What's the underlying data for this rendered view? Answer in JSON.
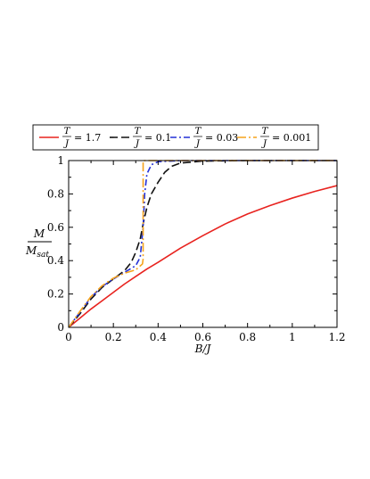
{
  "chart_data": {
    "type": "line",
    "xlabel": "B/J",
    "ylabel": {
      "numerator": "M",
      "denominator": "M_sat",
      "denominator_base": "M",
      "denominator_sub": "sat"
    },
    "xlim": [
      0,
      1.2
    ],
    "ylim": [
      0,
      1.0
    ],
    "x_ticks": [
      "0",
      "0.2",
      "0.4",
      "0.6",
      "0.8",
      "1",
      "1.2"
    ],
    "y_ticks": [
      "0",
      "0.2",
      "0.4",
      "0.6",
      "0.8",
      "1"
    ],
    "grid": false,
    "legend_placement": "top",
    "series": [
      {
        "name": "T/J = 1.7",
        "legend_value": "= 1.7",
        "color": "#e8231f",
        "dash": "solid",
        "points": [
          [
            0,
            0
          ],
          [
            0.05,
            0.055
          ],
          [
            0.1,
            0.11
          ],
          [
            0.15,
            0.16
          ],
          [
            0.2,
            0.21
          ],
          [
            0.25,
            0.26
          ],
          [
            0.3,
            0.305
          ],
          [
            0.35,
            0.35
          ],
          [
            0.4,
            0.39
          ],
          [
            0.5,
            0.475
          ],
          [
            0.6,
            0.55
          ],
          [
            0.7,
            0.62
          ],
          [
            0.8,
            0.68
          ],
          [
            0.9,
            0.73
          ],
          [
            1.0,
            0.775
          ],
          [
            1.1,
            0.815
          ],
          [
            1.2,
            0.85
          ]
        ]
      },
      {
        "name": "T/J = 0.1",
        "legend_value": "= 0.1",
        "color": "#111111",
        "dash": "long-dash",
        "points": [
          [
            0,
            0
          ],
          [
            0.05,
            0.08
          ],
          [
            0.1,
            0.17
          ],
          [
            0.15,
            0.24
          ],
          [
            0.2,
            0.29
          ],
          [
            0.25,
            0.34
          ],
          [
            0.28,
            0.39
          ],
          [
            0.3,
            0.45
          ],
          [
            0.32,
            0.53
          ],
          [
            0.333,
            0.62
          ],
          [
            0.35,
            0.72
          ],
          [
            0.37,
            0.8
          ],
          [
            0.4,
            0.87
          ],
          [
            0.43,
            0.93
          ],
          [
            0.46,
            0.965
          ],
          [
            0.5,
            0.985
          ],
          [
            0.6,
            0.997
          ],
          [
            0.8,
            1.0
          ],
          [
            1.2,
            1.0
          ]
        ]
      },
      {
        "name": "T/J = 0.03",
        "legend_value": "= 0.03",
        "color": "#2431d6",
        "dash": "dash-dot",
        "points": [
          [
            0,
            0
          ],
          [
            0.05,
            0.09
          ],
          [
            0.1,
            0.18
          ],
          [
            0.15,
            0.245
          ],
          [
            0.2,
            0.29
          ],
          [
            0.25,
            0.33
          ],
          [
            0.3,
            0.37
          ],
          [
            0.32,
            0.42
          ],
          [
            0.333,
            0.6
          ],
          [
            0.34,
            0.8
          ],
          [
            0.35,
            0.92
          ],
          [
            0.37,
            0.975
          ],
          [
            0.4,
            0.993
          ],
          [
            0.5,
            1.0
          ],
          [
            1.2,
            1.0
          ]
        ]
      },
      {
        "name": "T/J = 0.001",
        "legend_value": "= 0.001",
        "color": "#f5a31c",
        "dash": "dash-dot-long",
        "points": [
          [
            0,
            0
          ],
          [
            0.05,
            0.095
          ],
          [
            0.1,
            0.185
          ],
          [
            0.15,
            0.25
          ],
          [
            0.2,
            0.295
          ],
          [
            0.25,
            0.325
          ],
          [
            0.3,
            0.345
          ],
          [
            0.33,
            0.38
          ],
          [
            0.333,
            0.41
          ],
          [
            0.333,
            1.0
          ],
          [
            1.2,
            1.0
          ]
        ]
      }
    ]
  }
}
